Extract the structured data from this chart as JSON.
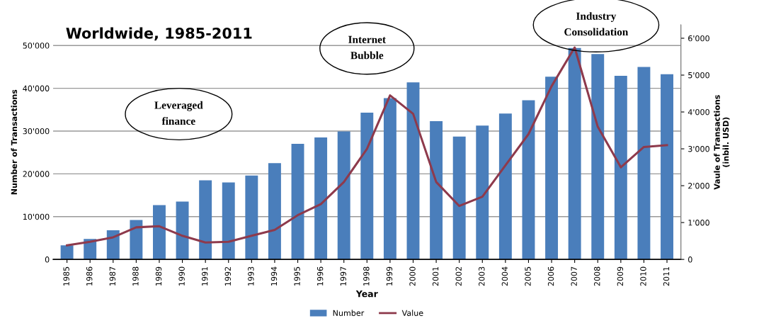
{
  "chart_data": {
    "type": "bar",
    "title": "Worldwide, 1985-2011",
    "xlabel": "Year",
    "ylabel": "Number of Transactions",
    "y2label": "Vaule of Transactions\n(inbil. USD)",
    "categories": [
      "1985",
      "1986",
      "1987",
      "1988",
      "1989",
      "1990",
      "1991",
      "1992",
      "1993",
      "1994",
      "1995",
      "1996",
      "1997",
      "1998",
      "1999",
      "2000",
      "2001",
      "2002",
      "2003",
      "2004",
      "2005",
      "2006",
      "2007",
      "2008",
      "2009",
      "2010",
      "2011"
    ],
    "series": [
      {
        "name": "Number",
        "color": "#4a7ebb",
        "values": [
          3300,
          4800,
          6800,
          9200,
          12700,
          13500,
          18500,
          18000,
          19600,
          22500,
          27000,
          28500,
          29900,
          34300,
          37700,
          41400,
          32300,
          28700,
          31300,
          34100,
          37200,
          42700,
          49400,
          48000,
          42900,
          45000,
          43300
        ]
      },
      {
        "name": "Value",
        "type": "line",
        "axis": "y2",
        "color": "#8e3a4c",
        "values": [
          380,
          480,
          600,
          870,
          900,
          640,
          460,
          480,
          640,
          800,
          1200,
          1500,
          2100,
          3000,
          4450,
          3950,
          2100,
          1450,
          1700,
          2550,
          3400,
          4700,
          5750,
          3600,
          2500,
          3050,
          3100
        ]
      }
    ],
    "ylim": [
      0,
      54800
    ],
    "yticks": [
      0,
      {
        "value": 10000,
        "label": "10'000"
      },
      {
        "value": 20000,
        "label": "20'000"
      },
      {
        "value": 30000,
        "label": "30'000"
      },
      {
        "value": 40000,
        "label": "40'000"
      },
      {
        "value": 50000,
        "label": "50'000"
      }
    ],
    "y2lim": [
      0,
      6360
    ],
    "y2ticks": [
      0,
      {
        "value": 1000,
        "label": "1'000"
      },
      {
        "value": 2000,
        "label": "2'000"
      },
      {
        "value": 3000,
        "label": "3'000"
      },
      {
        "value": 4000,
        "label": "4'000"
      },
      {
        "value": 5000,
        "label": "5'000"
      },
      {
        "value": 6000,
        "label": "6'000"
      }
    ],
    "grid": "y",
    "legend": "bottom",
    "marker": "none",
    "line_style": "solid",
    "annotations": [
      "Leveraged\nfinance",
      "Internet\nBubble",
      "Industry\nConsolidation"
    ]
  }
}
